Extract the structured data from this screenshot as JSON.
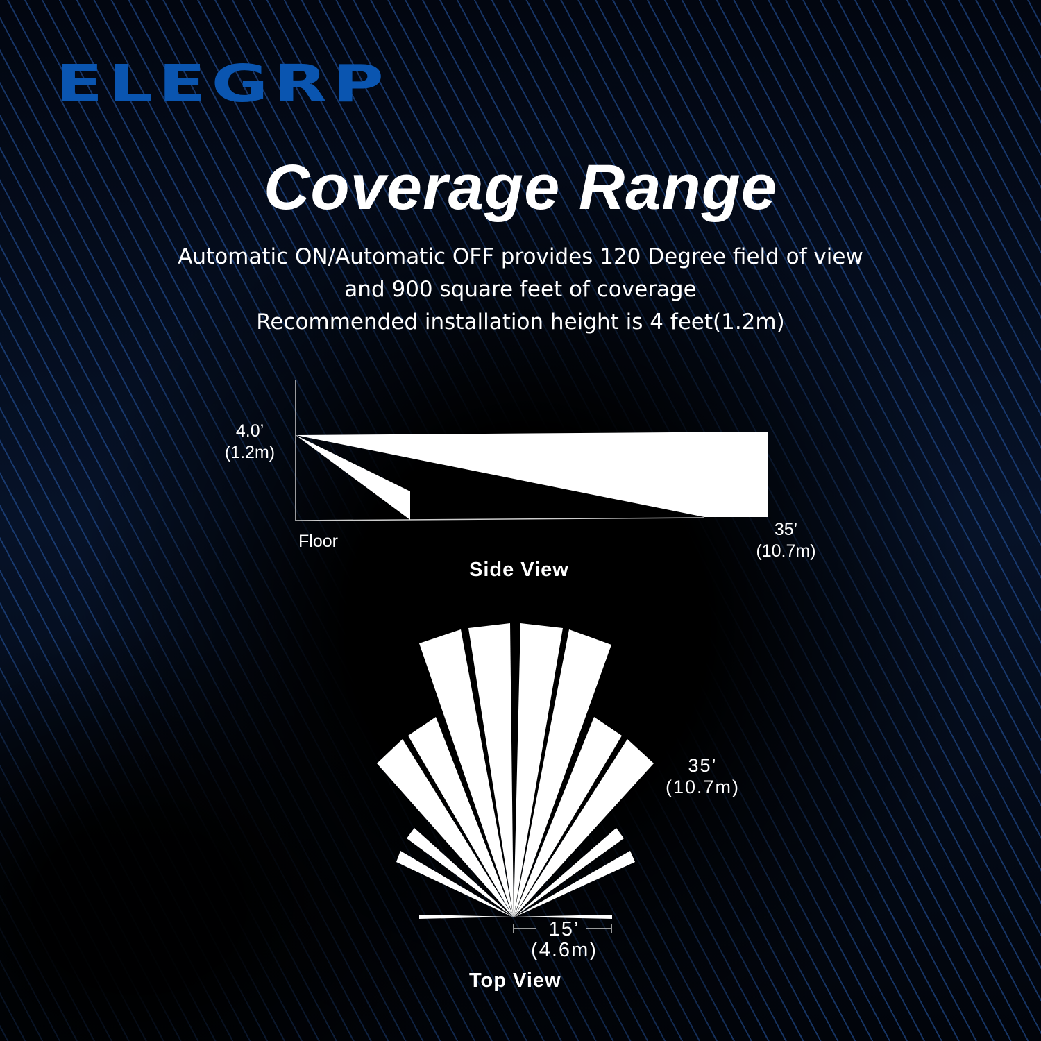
{
  "brand": {
    "logo": "ELEGRP",
    "color": "#0a55b0"
  },
  "title": "Coverage Range",
  "description": [
    "Automatic ON/Automatic OFF provides 120 Degree field of view",
    "and 900 square feet of coverage",
    "Recommended installation height is 4 feet(1.2m)"
  ],
  "side_view": {
    "caption": "Side View",
    "height_label": "4.0’",
    "height_label_metric": "(1.2m)",
    "floor_label": "Floor",
    "range_label": "35’",
    "range_label_metric": "(10.7m)"
  },
  "top_view": {
    "caption": "Top View",
    "range_label": "35’",
    "range_label_metric": "(10.7m)",
    "width_label": "15’",
    "width_label_metric": "(4.6m)",
    "field_of_view_degrees": 120
  }
}
